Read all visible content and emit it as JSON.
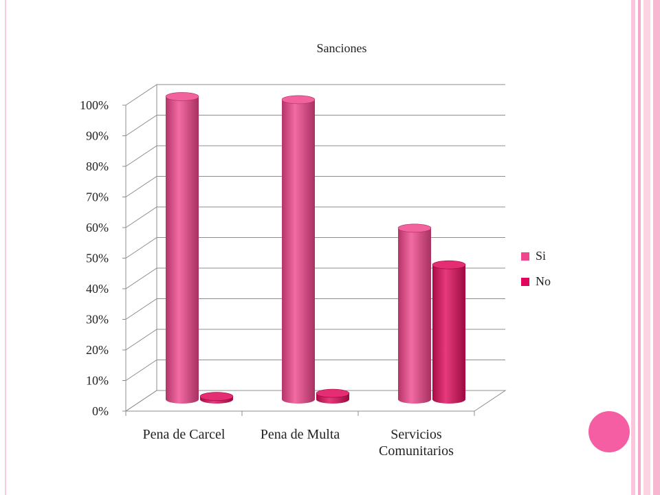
{
  "chart_data": {
    "type": "bar",
    "title": "Sanciones",
    "categories": [
      "Pena de Carcel",
      "Pena de Multa",
      "Servicios Comunitarios"
    ],
    "series": [
      {
        "name": "Si",
        "color": "#f0468c",
        "values": [
          99,
          98,
          56
        ]
      },
      {
        "name": "No",
        "color": "#e0085c",
        "values": [
          1,
          2,
          44
        ]
      }
    ],
    "ylim": [
      0,
      100
    ],
    "yticks": [
      {
        "value": 0,
        "label": "0%"
      },
      {
        "value": 10,
        "label": "10%"
      },
      {
        "value": 20,
        "label": "20%"
      },
      {
        "value": 30,
        "label": "30%"
      },
      {
        "value": 40,
        "label": "40%"
      },
      {
        "value": 50,
        "label": "50%"
      },
      {
        "value": 60,
        "label": "60%"
      },
      {
        "value": 70,
        "label": "70%"
      },
      {
        "value": 80,
        "label": "80%"
      },
      {
        "value": 90,
        "label": "90%"
      },
      {
        "value": 100,
        "label": "100%"
      }
    ],
    "grid": true,
    "legend": "right"
  }
}
